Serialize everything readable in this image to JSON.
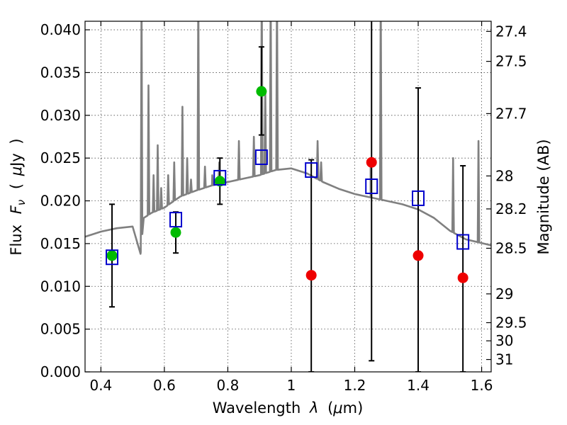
{
  "chart_data": {
    "type": "scatter",
    "title": "",
    "xlabel_parts": [
      "Wavelength",
      "λ",
      "(",
      "μ",
      "m)"
    ],
    "ylabel_parts": [
      "Flux",
      "F",
      "ν",
      "(",
      "μ",
      "Jy",
      ")"
    ],
    "y2label": "Magnitude (AB)",
    "xlim": [
      0.35,
      1.63
    ],
    "ylim": [
      0.0,
      0.041
    ],
    "grid": true,
    "x_ticks": [
      {
        "value": 0.4,
        "label": "0.4"
      },
      {
        "value": 0.6,
        "label": "0.6"
      },
      {
        "value": 0.8,
        "label": "0.8"
      },
      {
        "value": 1.0,
        "label": "1"
      },
      {
        "value": 1.2,
        "label": "1.2"
      },
      {
        "value": 1.4,
        "label": "1.4"
      },
      {
        "value": 1.6,
        "label": "1.6"
      }
    ],
    "y_ticks": [
      {
        "value": 0.0,
        "label": "0.000"
      },
      {
        "value": 0.005,
        "label": "0.005"
      },
      {
        "value": 0.01,
        "label": "0.010"
      },
      {
        "value": 0.015,
        "label": "0.015"
      },
      {
        "value": 0.02,
        "label": "0.020"
      },
      {
        "value": 0.025,
        "label": "0.025"
      },
      {
        "value": 0.03,
        "label": "0.030"
      },
      {
        "value": 0.035,
        "label": "0.035"
      },
      {
        "value": 0.04,
        "label": "0.040"
      }
    ],
    "y2_ticks": [
      {
        "value": 27.4,
        "label": "27.4"
      },
      {
        "value": 27.5,
        "label": "27.5"
      },
      {
        "value": 27.7,
        "label": "27.7"
      },
      {
        "value": 28.0,
        "label": "28"
      },
      {
        "value": 28.2,
        "label": "28.2"
      },
      {
        "value": 28.5,
        "label": "28.5"
      },
      {
        "value": 29.0,
        "label": "29"
      },
      {
        "value": 29.5,
        "label": "29.5"
      },
      {
        "value": 30.0,
        "label": "30"
      },
      {
        "value": 31.0,
        "label": "31"
      }
    ],
    "colors": {
      "model": "#808080",
      "observed": "#00bb00",
      "upper_limit": "#ee0000",
      "synthetic": "#0000cc",
      "errorbar": "#000000"
    },
    "model_spectrum": {
      "continuum": [
        [
          0.35,
          0.0158
        ],
        [
          0.4,
          0.0164
        ],
        [
          0.45,
          0.0168
        ],
        [
          0.5,
          0.017
        ],
        [
          0.525,
          0.0138
        ],
        [
          0.535,
          0.018
        ],
        [
          0.56,
          0.0186
        ],
        [
          0.6,
          0.0192
        ],
        [
          0.65,
          0.0205
        ],
        [
          0.7,
          0.0212
        ],
        [
          0.75,
          0.0218
        ],
        [
          0.8,
          0.0222
        ],
        [
          0.85,
          0.0226
        ],
        [
          0.9,
          0.023
        ],
        [
          0.95,
          0.0236
        ],
        [
          1.0,
          0.0238
        ],
        [
          1.05,
          0.0232
        ],
        [
          1.1,
          0.0222
        ],
        [
          1.15,
          0.0214
        ],
        [
          1.2,
          0.0208
        ],
        [
          1.25,
          0.0204
        ],
        [
          1.3,
          0.02
        ],
        [
          1.35,
          0.0196
        ],
        [
          1.4,
          0.019
        ],
        [
          1.45,
          0.018
        ],
        [
          1.5,
          0.0165
        ],
        [
          1.55,
          0.0155
        ],
        [
          1.63,
          0.0148
        ]
      ],
      "lines": [
        [
          0.528,
          0.045
        ],
        [
          0.55,
          0.0335
        ],
        [
          0.566,
          0.023
        ],
        [
          0.579,
          0.0265
        ],
        [
          0.59,
          0.0215
        ],
        [
          0.612,
          0.023
        ],
        [
          0.631,
          0.0245
        ],
        [
          0.657,
          0.031
        ],
        [
          0.672,
          0.025
        ],
        [
          0.684,
          0.0225
        ],
        [
          0.707,
          0.045
        ],
        [
          0.728,
          0.024
        ],
        [
          0.751,
          0.023
        ],
        [
          0.773,
          0.0245
        ],
        [
          0.835,
          0.027
        ],
        [
          0.882,
          0.0275
        ],
        [
          0.907,
          0.045
        ],
        [
          0.918,
          0.033
        ],
        [
          0.935,
          0.045
        ],
        [
          0.955,
          0.045
        ],
        [
          1.083,
          0.027
        ],
        [
          1.094,
          0.0245
        ],
        [
          1.25,
          0.024
        ],
        [
          1.282,
          0.045
        ],
        [
          1.51,
          0.025
        ],
        [
          1.59,
          0.027
        ]
      ]
    },
    "series": [
      {
        "marker": "circle",
        "color": "observed",
        "points": [
          {
            "x": 0.435,
            "y": 0.0136,
            "yerr_low": 0.0076,
            "yerr_high": 0.0196
          },
          {
            "x": 0.636,
            "y": 0.0163,
            "yerr_low": 0.0139,
            "yerr_high": 0.0187
          },
          {
            "x": 0.775,
            "y": 0.0223,
            "yerr_low": 0.0196,
            "yerr_high": 0.025
          },
          {
            "x": 0.906,
            "y": 0.0328,
            "yerr_low": 0.0277,
            "yerr_high": 0.038
          }
        ]
      },
      {
        "marker": "circle",
        "color": "upper_limit",
        "points": [
          {
            "x": 1.063,
            "y": 0.0113,
            "yerr_low": 0.0,
            "yerr_high": 0.0248
          },
          {
            "x": 1.253,
            "y": 0.0245,
            "yerr_low": 0.0013,
            "yerr_high": 0.051
          },
          {
            "x": 1.4,
            "y": 0.0136,
            "yerr_low": 0.0,
            "yerr_high": 0.0332
          },
          {
            "x": 1.541,
            "y": 0.011,
            "yerr_low": 0.0,
            "yerr_high": 0.0241
          }
        ]
      },
      {
        "marker": "open-square",
        "color": "synthetic",
        "points": [
          {
            "x": 0.435,
            "y": 0.0134
          },
          {
            "x": 0.636,
            "y": 0.0178
          },
          {
            "x": 0.775,
            "y": 0.0227
          },
          {
            "x": 0.906,
            "y": 0.0251
          },
          {
            "x": 1.063,
            "y": 0.0236
          },
          {
            "x": 1.253,
            "y": 0.0217
          },
          {
            "x": 1.4,
            "y": 0.0203
          },
          {
            "x": 1.541,
            "y": 0.0152
          }
        ]
      }
    ]
  }
}
